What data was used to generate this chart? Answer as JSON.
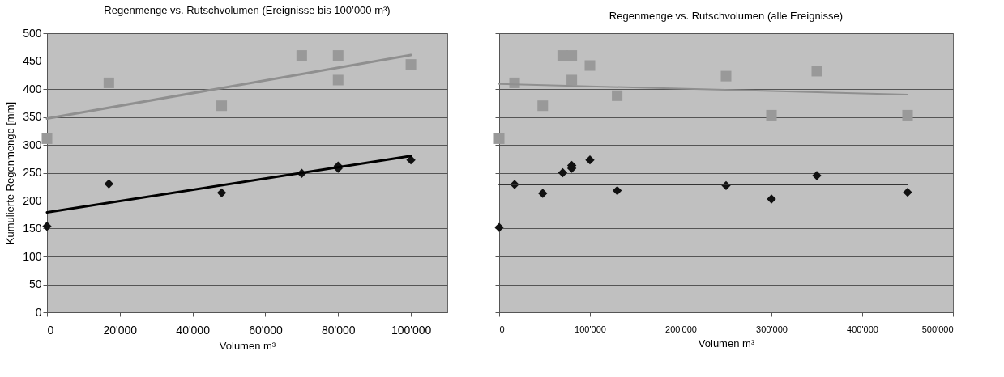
{
  "chart_data": [
    {
      "type": "scatter",
      "title": "Regenmenge vs. Rutschvolumen (Ereignisse bis 100’000 m³)",
      "xlabel": "Volumen m³",
      "ylabel": "Kumulierte Regenmenge [mm]",
      "xlim": [
        0,
        110000
      ],
      "xticks": [
        0,
        {
          "value": 20000,
          "label": "20'000"
        },
        {
          "value": 40000,
          "label": "40'000"
        },
        {
          "value": 60000,
          "label": "60'000"
        },
        {
          "value": 80000,
          "label": "80'000"
        },
        {
          "value": 100000,
          "label": "100'000"
        }
      ],
      "ylim": [
        0,
        500
      ],
      "yticks": [
        0,
        50,
        100,
        150,
        200,
        250,
        300,
        350,
        400,
        450,
        500
      ],
      "grid": "y",
      "series": [
        {
          "type": "scatter",
          "marker": "square",
          "color": "#999999",
          "x": [
            0,
            17000,
            48000,
            70000,
            80000,
            80000,
            100000
          ],
          "values": [
            311,
            411,
            370,
            460,
            460,
            416,
            444
          ]
        },
        {
          "type": "scatter",
          "marker": "diamond",
          "color": "#111111",
          "x": [
            0,
            17000,
            48000,
            70000,
            80000,
            80000,
            100000
          ],
          "values": [
            154,
            230,
            214,
            249,
            262,
            258,
            273
          ]
        },
        {
          "type": "line",
          "marker": "none",
          "color": "#8f8f8f",
          "x": [
            0,
            100000
          ],
          "values": [
            347,
            461
          ]
        },
        {
          "type": "line",
          "marker": "none",
          "color": "#000000",
          "x": [
            0,
            100000
          ],
          "values": [
            179,
            280
          ]
        }
      ]
    },
    {
      "type": "scatter",
      "title": "Regenmenge vs. Rutschvolumen (alle Ereignisse)",
      "xlabel": "Volumen m³",
      "xlim": [
        0,
        500000
      ],
      "xticks": [
        0,
        {
          "value": 100000,
          "label": "100'000"
        },
        {
          "value": 200000,
          "label": "200'000"
        },
        {
          "value": 300000,
          "label": "300'000"
        },
        {
          "value": 400000,
          "label": "400'000"
        },
        {
          "value": 500000,
          "label": "500'000"
        }
      ],
      "ylim": [
        0,
        500
      ],
      "yticks": [
        0,
        50,
        100,
        150,
        200,
        250,
        300,
        350,
        400,
        450,
        500
      ],
      "grid": "y",
      "tick_labels": "x",
      "series": [
        {
          "type": "scatter",
          "marker": "square",
          "color": "#999999",
          "x": [
            0,
            17000,
            48000,
            70000,
            80000,
            80000,
            100000,
            130000,
            250000,
            300000,
            350000,
            450000
          ],
          "values": [
            311,
            411,
            370,
            460,
            460,
            416,
            442,
            388,
            423,
            353,
            432,
            353
          ]
        },
        {
          "type": "scatter",
          "marker": "diamond",
          "color": "#111111",
          "x": [
            0,
            17000,
            48000,
            70000,
            80000,
            80000,
            100000,
            130000,
            250000,
            300000,
            350000,
            450000
          ],
          "values": [
            152,
            229,
            213,
            250,
            263,
            258,
            273,
            218,
            227,
            203,
            245,
            215
          ]
        },
        {
          "type": "line",
          "marker": "none",
          "color": "#8f8f8f",
          "x": [
            0,
            450000
          ],
          "values": [
            409,
            390
          ]
        },
        {
          "type": "line",
          "marker": "none",
          "color": "#333333",
          "x": [
            0,
            450000
          ],
          "values": [
            229,
            229
          ]
        }
      ]
    }
  ]
}
